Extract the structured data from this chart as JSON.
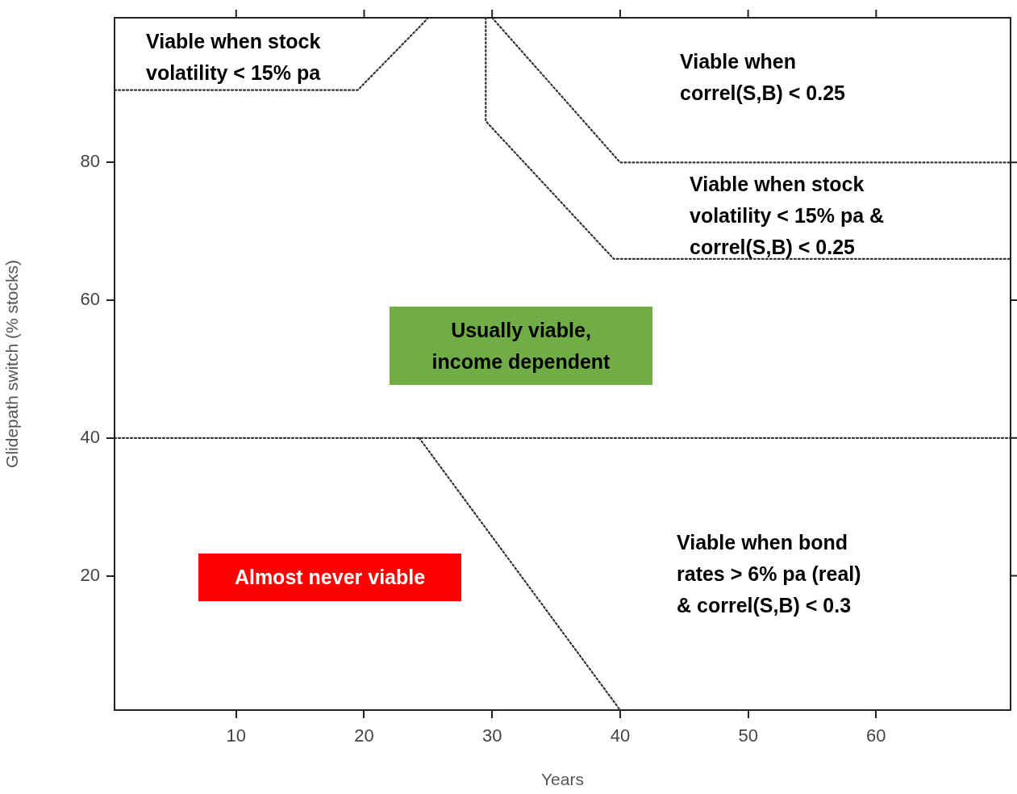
{
  "chart_data": {
    "type": "line",
    "xlabel": "Years",
    "ylabel": "Glidepath switch (% stocks)",
    "xlim": [
      0.5,
      70.5
    ],
    "ylim": [
      0.5,
      101
    ],
    "xticks": [
      10,
      20,
      30,
      40,
      50,
      60
    ],
    "yticks": [
      20,
      40,
      60,
      80
    ],
    "grid": false,
    "legend": false,
    "marker": "none",
    "line_style": "dotted",
    "series": [
      {
        "color": "#333333",
        "x": [
          0.5,
          19.5,
          24.5,
          25
        ],
        "values": [
          90.5,
          90.5,
          100,
          101
        ]
      },
      {
        "color": "#333333",
        "x": [
          30,
          40,
          70.5
        ],
        "values": [
          101,
          80,
          80
        ]
      },
      {
        "color": "#333333",
        "x": [
          29.5,
          29.5,
          39.5,
          70.5
        ],
        "values": [
          101,
          86,
          66,
          66
        ]
      },
      {
        "color": "#333333",
        "x": [
          0.5,
          70.5
        ],
        "values": [
          40,
          40
        ]
      },
      {
        "color": "#333333",
        "x": [
          24.3,
          40
        ],
        "values": [
          40,
          0.5
        ]
      }
    ],
    "annotations": [
      "Viable when stock\nvolatility < 15% pa",
      "Viable when\ncorrel(S,B) < 0.25",
      "Viable when stock\nvolatility < 15% pa &\ncorrel(S,B) < 0.25",
      "Usually viable,\nincome dependent",
      "Almost never viable",
      "Viable when bond\nrates > 6% pa (real)\n& correl(S,B) < 0.3"
    ]
  }
}
